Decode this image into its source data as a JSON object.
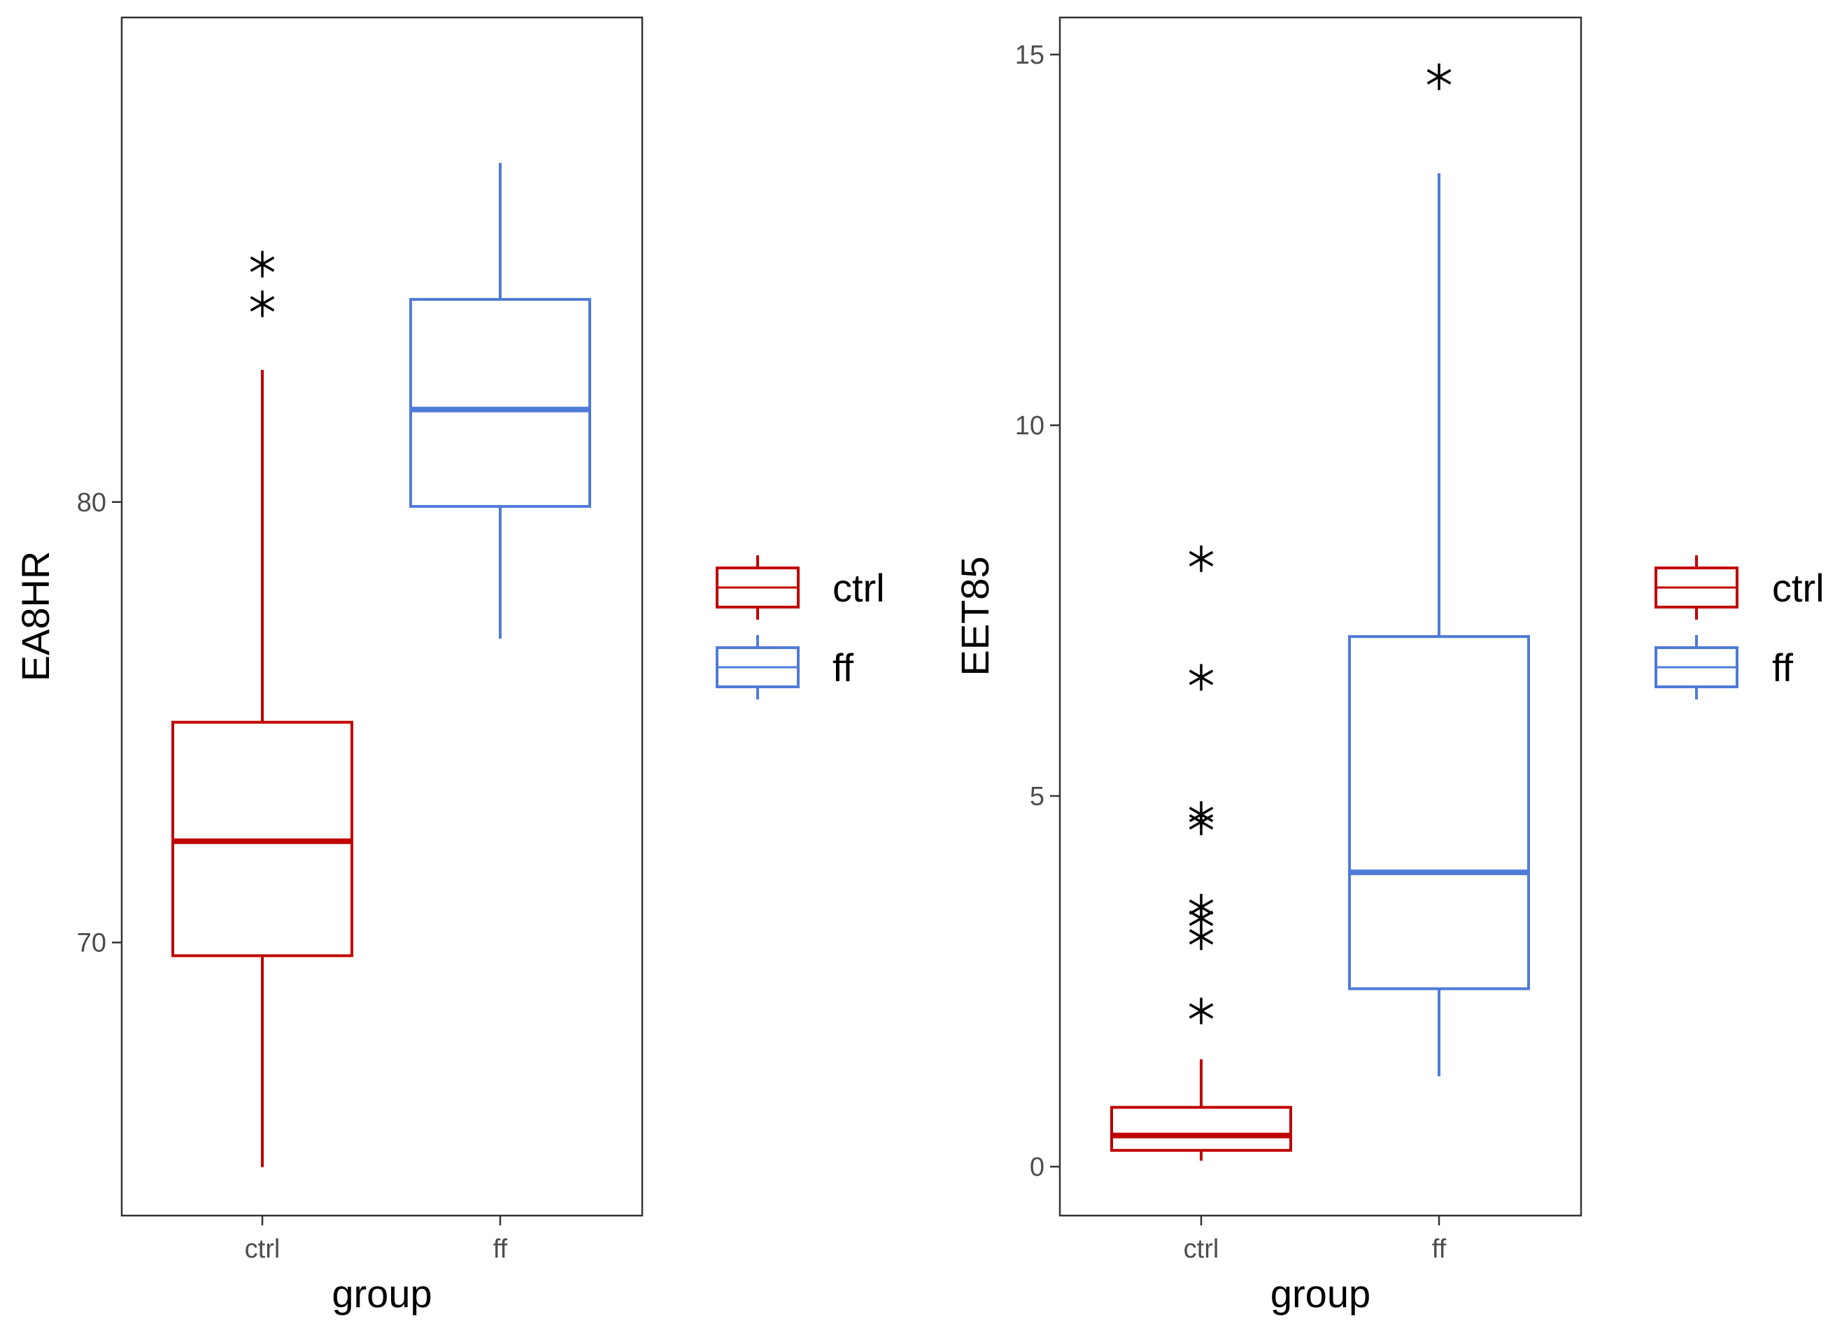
{
  "colors": {
    "ctrl": "#C00000",
    "ff": "#4F7BD8",
    "outlier": "#000000",
    "panel_border": "#333333",
    "tick_text": "#4d4d4d"
  },
  "legend": {
    "items": [
      {
        "key": "ctrl",
        "label": "ctrl"
      },
      {
        "key": "ff",
        "label": "ff"
      }
    ]
  },
  "chart_data": [
    {
      "type": "boxplot",
      "xlabel": "group",
      "ylabel": "EA8HR",
      "ylim": [
        63.8,
        91.0
      ],
      "yticks": [
        70,
        80
      ],
      "categories": [
        "ctrl",
        "ff"
      ],
      "boxes": [
        {
          "group": "ctrl",
          "whisker_low": 64.9,
          "q1": 69.7,
          "median": 72.3,
          "q3": 75.0,
          "whisker_high": 83.0,
          "outliers": [
            84.5,
            85.4
          ]
        },
        {
          "group": "ff",
          "whisker_low": 76.9,
          "q1": 79.9,
          "median": 82.1,
          "q3": 84.6,
          "whisker_high": 87.7,
          "outliers": []
        }
      ]
    },
    {
      "type": "boxplot",
      "xlabel": "group",
      "ylabel": "EET85",
      "ylim": [
        -0.66,
        15.5
      ],
      "yticks": [
        0,
        5,
        10,
        15
      ],
      "categories": [
        "ctrl",
        "ff"
      ],
      "boxes": [
        {
          "group": "ctrl",
          "whisker_low": 0.08,
          "q1": 0.22,
          "median": 0.42,
          "q3": 0.8,
          "whisker_high": 1.45,
          "outliers": [
            2.1,
            3.1,
            3.35,
            3.5,
            4.65,
            4.75,
            6.6,
            8.2
          ]
        },
        {
          "group": "ff",
          "whisker_low": 1.22,
          "q1": 2.4,
          "median": 3.97,
          "q3": 7.15,
          "whisker_high": 13.4,
          "outliers": [
            14.7
          ]
        }
      ]
    }
  ]
}
